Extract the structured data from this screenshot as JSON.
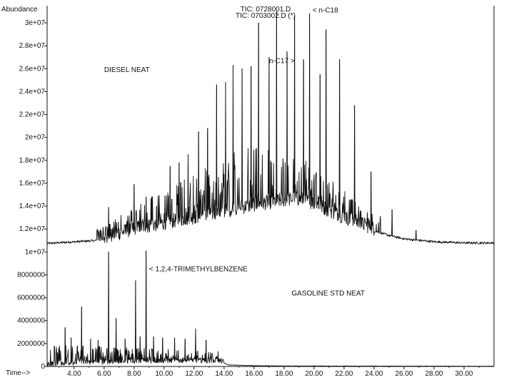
{
  "chart_data": {
    "type": "line",
    "y_axis_label": "Abundance",
    "x_axis_label": "Time-->",
    "x_range": [
      2.2,
      32.0
    ],
    "y_range": [
      0,
      31500000
    ],
    "x_ticks": [
      "4.00",
      "6.00",
      "8.00",
      "10.00",
      "12.00",
      "14.00",
      "16.00",
      "18.00",
      "20.00",
      "22.00",
      "24.00",
      "26.00",
      "28.00",
      "30.00"
    ],
    "y_ticks_lower": [
      "2000000",
      "4000000",
      "6000000",
      "8000000"
    ],
    "y_ticks_upper": [
      "1e+07",
      "1.2e+07",
      "1.4e+07",
      "1.6e+07",
      "1.8e+07",
      "2e+07",
      "2.2e+07",
      "2.4e+07",
      "2.6e+07",
      "2.8e+07",
      "3e+07"
    ],
    "legend_lines": [
      "TIC: 0728001.D",
      "TIC: 0703002.D (*)"
    ],
    "series": [
      {
        "name": "DIESEL NEAT",
        "baseline": [
          [
            2.2,
            10700000
          ],
          [
            6,
            11000000
          ],
          [
            8,
            11800000
          ],
          [
            10,
            12300000
          ],
          [
            12,
            12800000
          ],
          [
            14,
            13300000
          ],
          [
            16,
            13900000
          ],
          [
            18,
            14300000
          ],
          [
            19,
            14400000
          ],
          [
            20,
            14000000
          ],
          [
            21,
            13400000
          ],
          [
            22,
            12800000
          ],
          [
            23,
            12300000
          ],
          [
            24,
            11800000
          ],
          [
            25,
            11400000
          ],
          [
            26,
            11100000
          ],
          [
            28,
            10850000
          ],
          [
            30,
            10750000
          ],
          [
            32,
            10750000
          ]
        ],
        "peaks": [
          [
            6.3,
            13900000
          ],
          [
            8.0,
            15900000
          ],
          [
            8.8,
            14800000
          ],
          [
            9.5,
            14000000
          ],
          [
            10.4,
            17500000
          ],
          [
            11.0,
            17800000
          ],
          [
            11.6,
            18500000
          ],
          [
            12.3,
            20500000
          ],
          [
            12.9,
            20800000
          ],
          [
            13.5,
            24600000
          ],
          [
            14.1,
            24800000
          ],
          [
            14.6,
            26300000
          ],
          [
            15.2,
            26000000
          ],
          [
            15.8,
            26200000
          ],
          [
            16.3,
            30000000
          ],
          [
            17.0,
            27000000
          ],
          [
            17.5,
            31000000
          ],
          [
            18.2,
            27500000
          ],
          [
            18.7,
            30600000
          ],
          [
            19.3,
            26800000
          ],
          [
            19.7,
            30800000
          ],
          [
            20.4,
            25500000
          ],
          [
            20.8,
            29400000
          ],
          [
            21.7,
            26800000
          ],
          [
            22.7,
            22800000
          ],
          [
            23.8,
            17000000
          ],
          [
            25.2,
            13700000
          ],
          [
            26.8,
            11900000
          ],
          [
            29.0,
            10900000
          ]
        ]
      },
      {
        "name": "GASOLINE STD NEAT",
        "baseline": [
          [
            2.2,
            150000
          ],
          [
            4,
            250000
          ],
          [
            8,
            400000
          ],
          [
            12,
            450000
          ],
          [
            13.8,
            400000
          ],
          [
            14.3,
            120000
          ],
          [
            16,
            60000
          ],
          [
            18,
            30000
          ],
          [
            32,
            10000
          ]
        ],
        "peaks": [
          [
            2.9,
            1200000
          ],
          [
            3.4,
            3400000
          ],
          [
            3.8,
            2500000
          ],
          [
            4.5,
            5200000
          ],
          [
            5.1,
            2400000
          ],
          [
            5.6,
            2300000
          ],
          [
            6.3,
            10000000
          ],
          [
            6.8,
            4200000
          ],
          [
            7.4,
            2400000
          ],
          [
            8.1,
            7500000
          ],
          [
            8.4,
            2600000
          ],
          [
            8.8,
            10100000
          ],
          [
            9.3,
            2600000
          ],
          [
            9.9,
            2500000
          ],
          [
            10.7,
            2500000
          ],
          [
            11.4,
            2400000
          ],
          [
            12.1,
            3300000
          ],
          [
            12.8,
            2300000
          ],
          [
            13.6,
            1300000
          ]
        ]
      }
    ],
    "annotations": [
      {
        "text": "DIESEL   NEAT",
        "x": 6.0,
        "y": 25700000
      },
      {
        "text": "GASOLINE STD   NEAT",
        "x": 18.5,
        "y": 6200000
      },
      {
        "text": "< 1,2,4-TRIMETHYLBENZENE",
        "x": 9.0,
        "y": 8300000
      },
      {
        "text": "n-C17 >",
        "x": 17.0,
        "y": 26500000
      },
      {
        "text": "< n-C18",
        "x": 19.9,
        "y": 30900000
      }
    ]
  }
}
